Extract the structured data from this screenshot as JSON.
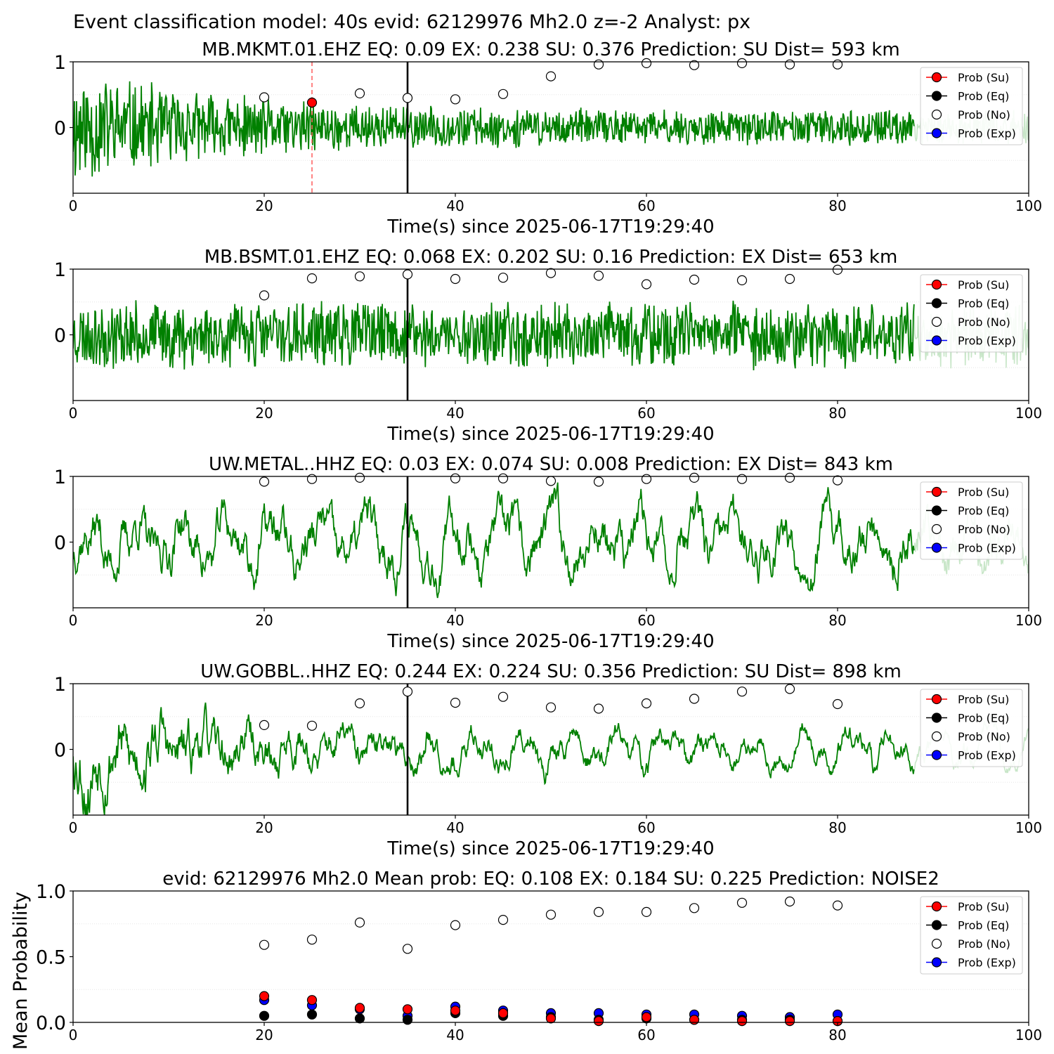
{
  "suptitle": "Event classification model: 40s evid: 62129976 Mh2.0 z=-2 Analyst: px",
  "legend": {
    "entries": [
      {
        "label": "Prob (Su)",
        "face": "#ff0000",
        "line": "#ff0000"
      },
      {
        "label": "Prob (Eq)",
        "face": "#000000",
        "line": "#000000"
      },
      {
        "label": "Prob (No)",
        "face": "#ffffff",
        "line": "none"
      },
      {
        "label": "Prob (Exp)",
        "face": "#0000ff",
        "line": "#0000ff"
      }
    ]
  },
  "colors": {
    "waveform": "#008000",
    "waveform_faded": "#c8e6c8",
    "marker_line": "#000000",
    "pick": "#ff6666",
    "grid": "#e6e6e6"
  },
  "chart_data": [
    {
      "type": "line",
      "title": "MB.MKMT.01.EHZ   EQ: 0.09  EX: 0.238  SU: 0.376   Prediction: SU    Dist= 593 km",
      "xlabel": "Time(s) since 2025-06-17T19:29:40",
      "xlim": [
        0,
        100
      ],
      "ylim": [
        -1,
        1
      ],
      "xticks": [
        "0",
        "20",
        "40",
        "60",
        "80",
        "100"
      ],
      "yticks": [
        "1",
        "0"
      ],
      "waveform": {
        "seed": 11,
        "envelope": "decay",
        "character": "noisy",
        "fade_from": 88
      },
      "vline": 35,
      "pick": 25,
      "series": [
        {
          "name": "Prob (No)",
          "x": [
            20,
            30,
            35,
            40,
            45,
            50,
            55,
            60,
            65,
            70,
            75,
            80
          ],
          "y": [
            0.46,
            0.52,
            0.45,
            0.43,
            0.51,
            0.78,
            0.96,
            0.98,
            0.95,
            0.98,
            0.96,
            0.96
          ]
        },
        {
          "name": "Prob (Su)",
          "x": [
            25
          ],
          "y": [
            0.38
          ]
        }
      ]
    },
    {
      "type": "line",
      "title": "MB.BSMT.01.EHZ   EQ: 0.068  EX: 0.202  SU: 0.16   Prediction: EX    Dist= 653 km",
      "xlabel": "Time(s) since 2025-06-17T19:29:40",
      "xlim": [
        0,
        100
      ],
      "ylim": [
        -1,
        1
      ],
      "xticks": [
        "0",
        "20",
        "40",
        "60",
        "80",
        "100"
      ],
      "yticks": [
        "1",
        "0"
      ],
      "waveform": {
        "seed": 23,
        "envelope": "flat",
        "character": "noisy",
        "fade_from": 88
      },
      "vline": 35,
      "series": [
        {
          "name": "Prob (No)",
          "x": [
            20,
            25,
            30,
            35,
            40,
            45,
            50,
            55,
            60,
            65,
            70,
            75,
            80
          ],
          "y": [
            0.6,
            0.86,
            0.89,
            0.92,
            0.85,
            0.87,
            0.94,
            0.9,
            0.77,
            0.84,
            0.83,
            0.85,
            0.99
          ]
        }
      ]
    },
    {
      "type": "line",
      "title": "UW.METAL..HHZ   EQ: 0.03  EX: 0.074  SU: 0.008   Prediction: EX    Dist= 843 km",
      "xlabel": "Time(s) since 2025-06-17T19:29:40",
      "xlim": [
        0,
        100
      ],
      "ylim": [
        -1,
        1
      ],
      "xticks": [
        "0",
        "20",
        "40",
        "60",
        "80",
        "100"
      ],
      "yticks": [
        "1",
        "0"
      ],
      "waveform": {
        "seed": 37,
        "envelope": "flat",
        "character": "oscillating",
        "fade_from": 88
      },
      "vline": 35,
      "series": [
        {
          "name": "Prob (No)",
          "x": [
            20,
            25,
            30,
            40,
            45,
            50,
            55,
            60,
            65,
            70,
            75,
            80
          ],
          "y": [
            0.92,
            0.96,
            0.98,
            0.97,
            0.97,
            0.93,
            0.92,
            0.96,
            0.98,
            0.96,
            0.98,
            0.94
          ]
        }
      ]
    },
    {
      "type": "line",
      "title": "UW.GOBBL..HHZ   EQ: 0.244  EX: 0.224  SU: 0.356   Prediction: SU    Dist= 898 km",
      "xlabel": "Time(s) since 2025-06-17T19:29:40",
      "xlim": [
        0,
        100
      ],
      "ylim": [
        -1,
        1
      ],
      "xticks": [
        "0",
        "20",
        "40",
        "60",
        "80",
        "100"
      ],
      "yticks": [
        "1",
        "0"
      ],
      "waveform": {
        "seed": 53,
        "envelope": "decay",
        "character": "oscillating",
        "fade_from": 88
      },
      "vline": 35,
      "series": [
        {
          "name": "Prob (No)",
          "x": [
            20,
            25,
            30,
            35,
            40,
            45,
            50,
            55,
            60,
            65,
            70,
            75,
            80
          ],
          "y": [
            0.37,
            0.36,
            0.7,
            0.88,
            0.71,
            0.8,
            0.64,
            0.62,
            0.7,
            0.77,
            0.88,
            0.92,
            0.69
          ]
        }
      ]
    },
    {
      "type": "scatter",
      "title": "evid: 62129976  Mh2.0   Mean prob:   EQ: 0.108  EX: 0.184  SU: 0.225   Prediction: NOISE2",
      "xlabel": "",
      "ylabel": "Mean Probability",
      "xlim": [
        0,
        100
      ],
      "ylim": [
        0,
        1
      ],
      "xticks": [
        "0",
        "20",
        "40",
        "60",
        "80",
        "100"
      ],
      "yticks": [
        "1.0",
        "0.5",
        "0.0"
      ],
      "x": [
        20,
        25,
        30,
        35,
        40,
        45,
        50,
        55,
        60,
        65,
        70,
        75,
        80
      ],
      "series": [
        {
          "name": "Prob (No)",
          "values": [
            0.59,
            0.63,
            0.76,
            0.56,
            0.74,
            0.78,
            0.82,
            0.84,
            0.84,
            0.87,
            0.91,
            0.92,
            0.89
          ]
        },
        {
          "name": "Prob (Exp)",
          "values": [
            0.17,
            0.13,
            0.1,
            0.05,
            0.12,
            0.09,
            0.07,
            0.07,
            0.06,
            0.06,
            0.05,
            0.04,
            0.06
          ]
        },
        {
          "name": "Prob (Eq)",
          "values": [
            0.05,
            0.06,
            0.03,
            0.02,
            0.07,
            0.05,
            0.04,
            0.02,
            0.03,
            0.02,
            0.02,
            0.02,
            0.01
          ]
        },
        {
          "name": "Prob (Su)",
          "values": [
            0.2,
            0.17,
            0.11,
            0.1,
            0.09,
            0.07,
            0.03,
            0.01,
            0.04,
            0.02,
            0.01,
            0.01,
            0.01
          ]
        }
      ]
    }
  ]
}
